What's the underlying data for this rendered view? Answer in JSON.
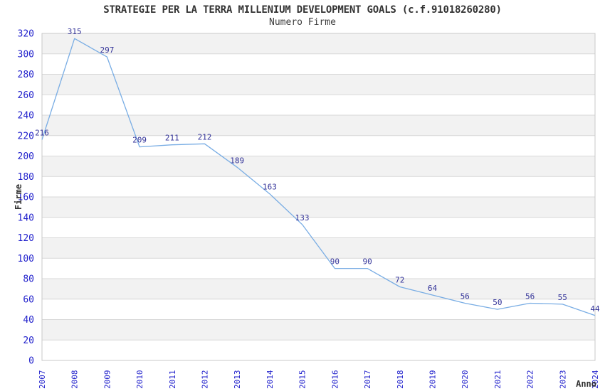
{
  "chart_data": {
    "type": "line",
    "title": "STRATEGIE PER LA TERRA MILLENIUM DEVELOPMENT GOALS (c.f.91018260280)",
    "subtitle": "Numero Firme",
    "xlabel": "Anno",
    "ylabel": "Firme",
    "x": [
      2007,
      2008,
      2009,
      2010,
      2011,
      2012,
      2013,
      2014,
      2015,
      2016,
      2017,
      2018,
      2019,
      2020,
      2021,
      2022,
      2023,
      2024
    ],
    "series": [
      {
        "name": "Numero Firme",
        "values": [
          216,
          315,
          297,
          209,
          211,
          212,
          189,
          163,
          133,
          90,
          90,
          72,
          64,
          56,
          50,
          56,
          55,
          44
        ]
      }
    ],
    "ylim": [
      0,
      320
    ],
    "ytick_step": 20,
    "grid": "horizontal",
    "banded_background": true,
    "legend_position": "none",
    "data_labels_visible": true
  },
  "colors": {
    "line": "#79ade4",
    "tick_label": "#2222cc",
    "data_label": "#333399",
    "band": "#f2f2f2",
    "gridline": "#d8d8d8",
    "plot_border": "#c9c9c9",
    "text": "#333333",
    "background": "#ffffff"
  }
}
